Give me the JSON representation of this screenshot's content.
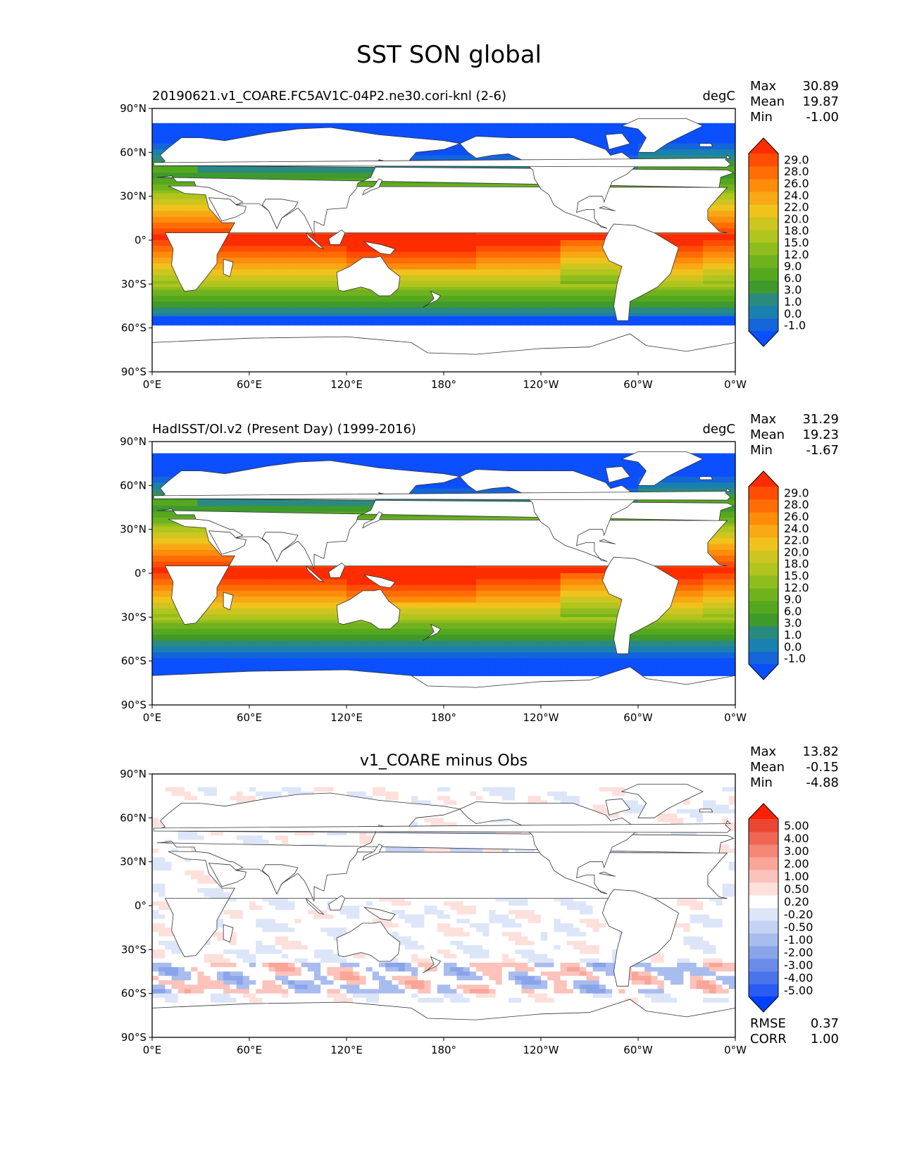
{
  "figure": {
    "title": "SST SON global"
  },
  "colors": {
    "sst_levels": [
      "#0b4fff",
      "#1466d8",
      "#1a80b0",
      "#2b8a80",
      "#3f9a2c",
      "#55a81e",
      "#6fb21e",
      "#8fbd1e",
      "#b0c51e",
      "#cfc520",
      "#f0c21c",
      "#f8a814",
      "#ff8c0a",
      "#ff6d06",
      "#ff4e04",
      "#ff2c00"
    ],
    "diff_levels": [
      "#0040ff",
      "#2a5cf4",
      "#4a74ea",
      "#6a8ce8",
      "#8aa4ea",
      "#a9bcee",
      "#c6d2f4",
      "#dde5f8",
      "#ffffff",
      "#fde0dc",
      "#fbc3bb",
      "#f9a598",
      "#f48676",
      "#ef6654",
      "#ea4632",
      "#ff2000"
    ]
  },
  "chart_data": [
    {
      "type": "heatmap",
      "title": "",
      "left_title": "20190621.v1_COARE.FC5AV1C-04P2.ne30.cori-knl (2-6)",
      "units": "degC",
      "stats": [
        {
          "label": "Max",
          "value": "30.89"
        },
        {
          "label": "Mean",
          "value": "19.87"
        },
        {
          "label": "Min",
          "value": "-1.00"
        }
      ],
      "x_ticks": [
        "0°E",
        "60°E",
        "120°E",
        "180°",
        "120°W",
        "60°W",
        "0°W"
      ],
      "y_ticks": [
        "90°N",
        "60°N",
        "30°N",
        "0°",
        "30°S",
        "60°S",
        "90°S"
      ],
      "xlim": [
        0,
        360
      ],
      "ylim": [
        -90,
        90
      ],
      "colorbar_levels": [
        "29.0",
        "28.0",
        "26.0",
        "24.0",
        "22.0",
        "20.0",
        "18.0",
        "15.0",
        "12.0",
        "9.0",
        "6.0",
        "3.0",
        "1.0",
        "0.0",
        "-1.0"
      ],
      "colorbar_extend": "both",
      "ice_edge_lat_south": -57,
      "ice_edge_lat_north": 80
    },
    {
      "type": "heatmap",
      "title": "",
      "left_title": "HadISST/OI.v2 (Present Day) (1999-2016)",
      "units": "degC",
      "stats": [
        {
          "label": "Max",
          "value": "31.29"
        },
        {
          "label": "Mean",
          "value": "19.23"
        },
        {
          "label": "Min",
          "value": "-1.67"
        }
      ],
      "x_ticks": [
        "0°E",
        "60°E",
        "120°E",
        "180°",
        "120°W",
        "60°W",
        "0°W"
      ],
      "y_ticks": [
        "90°N",
        "60°N",
        "30°N",
        "0°",
        "30°S",
        "60°S",
        "90°S"
      ],
      "xlim": [
        0,
        360
      ],
      "ylim": [
        -90,
        90
      ],
      "colorbar_levels": [
        "29.0",
        "28.0",
        "26.0",
        "24.0",
        "22.0",
        "20.0",
        "18.0",
        "15.0",
        "12.0",
        "9.0",
        "6.0",
        "3.0",
        "1.0",
        "0.0",
        "-1.0"
      ],
      "colorbar_extend": "both",
      "ice_edge_lat_south": -69,
      "ice_edge_lat_north": 82
    },
    {
      "type": "heatmap",
      "title": "v1_COARE minus Obs",
      "left_title": "",
      "units": "",
      "stats": [
        {
          "label": "Max",
          "value": "13.82"
        },
        {
          "label": "Mean",
          "value": "-0.15"
        },
        {
          "label": "Min",
          "value": "-4.88"
        }
      ],
      "extra_stats": [
        {
          "label": "RMSE",
          "value": "0.37"
        },
        {
          "label": "CORR",
          "value": "1.00"
        }
      ],
      "x_ticks": [
        "0°E",
        "60°E",
        "120°E",
        "180°",
        "120°W",
        "60°W",
        "0°W"
      ],
      "y_ticks": [
        "90°N",
        "60°N",
        "30°N",
        "0°",
        "30°S",
        "60°S",
        "90°S"
      ],
      "xlim": [
        0,
        360
      ],
      "ylim": [
        -90,
        90
      ],
      "colorbar_levels": [
        "5.00",
        "4.00",
        "3.00",
        "2.00",
        "1.00",
        "0.50",
        "0.20",
        "-0.20",
        "-0.50",
        "-1.00",
        "-2.00",
        "-3.00",
        "-4.00",
        "-5.00"
      ],
      "colorbar_extend": "both"
    }
  ]
}
